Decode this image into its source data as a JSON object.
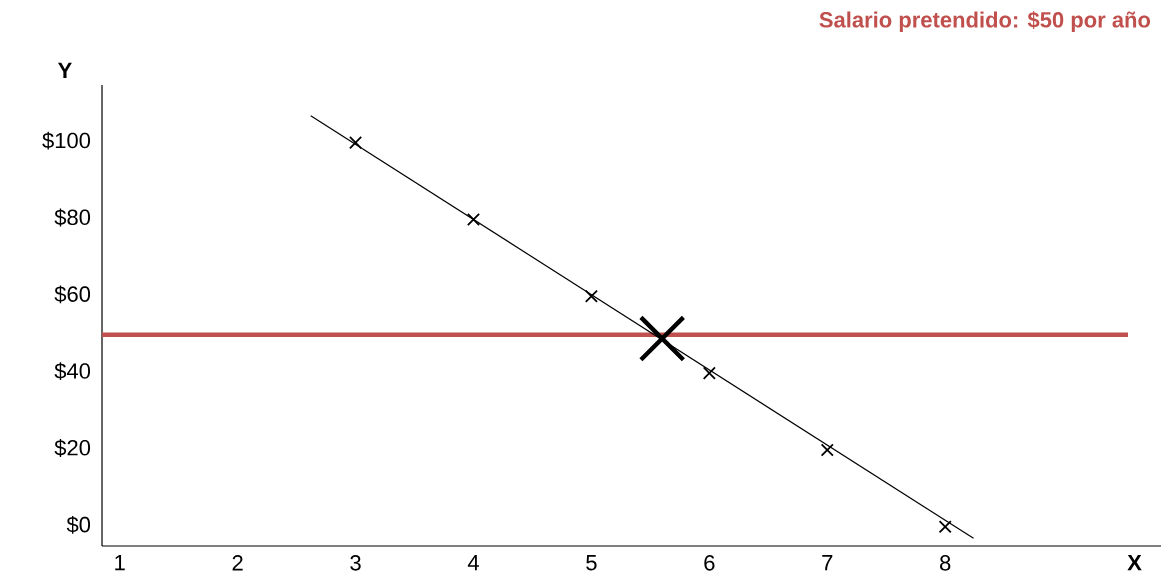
{
  "chart_data": {
    "type": "line",
    "xlabel": "X",
    "ylabel": "Y",
    "xlim": [
      0.85,
      9.83
    ],
    "ylim": [
      -5,
      115
    ],
    "xticks": [
      {
        "value": 1,
        "label": "1"
      },
      {
        "value": 2,
        "label": "2"
      },
      {
        "value": 3,
        "label": "3"
      },
      {
        "value": 4,
        "label": "4"
      },
      {
        "value": 5,
        "label": "5"
      },
      {
        "value": 6,
        "label": "6"
      },
      {
        "value": 7,
        "label": "7"
      },
      {
        "value": 8,
        "label": "8"
      }
    ],
    "yticks": [
      {
        "value": 0,
        "label": "$0"
      },
      {
        "value": 20,
        "label": "$20"
      },
      {
        "value": 40,
        "label": "$40"
      },
      {
        "value": 60,
        "label": "$60"
      },
      {
        "value": 80,
        "label": "$80"
      },
      {
        "value": 100,
        "label": "$100"
      }
    ],
    "marker": "cross",
    "series": [
      {
        "color": "#000000",
        "x": [
          2.62,
          8.24
        ],
        "values": [
          107,
          -3
        ],
        "marker": "none"
      },
      {
        "type": "scatter",
        "color": "#000000",
        "x": [
          3,
          4,
          5,
          6,
          7,
          8
        ],
        "values": [
          100,
          80,
          60,
          40,
          20,
          0
        ]
      },
      {
        "type": "scatter",
        "color": "#000000",
        "x": [
          5.6
        ],
        "values": [
          49
        ]
      }
    ],
    "ref_lines": [
      {
        "axis": "y",
        "value": 50,
        "label": "Salario pretendido: $50 por año",
        "color": "#c0504d"
      }
    ]
  }
}
